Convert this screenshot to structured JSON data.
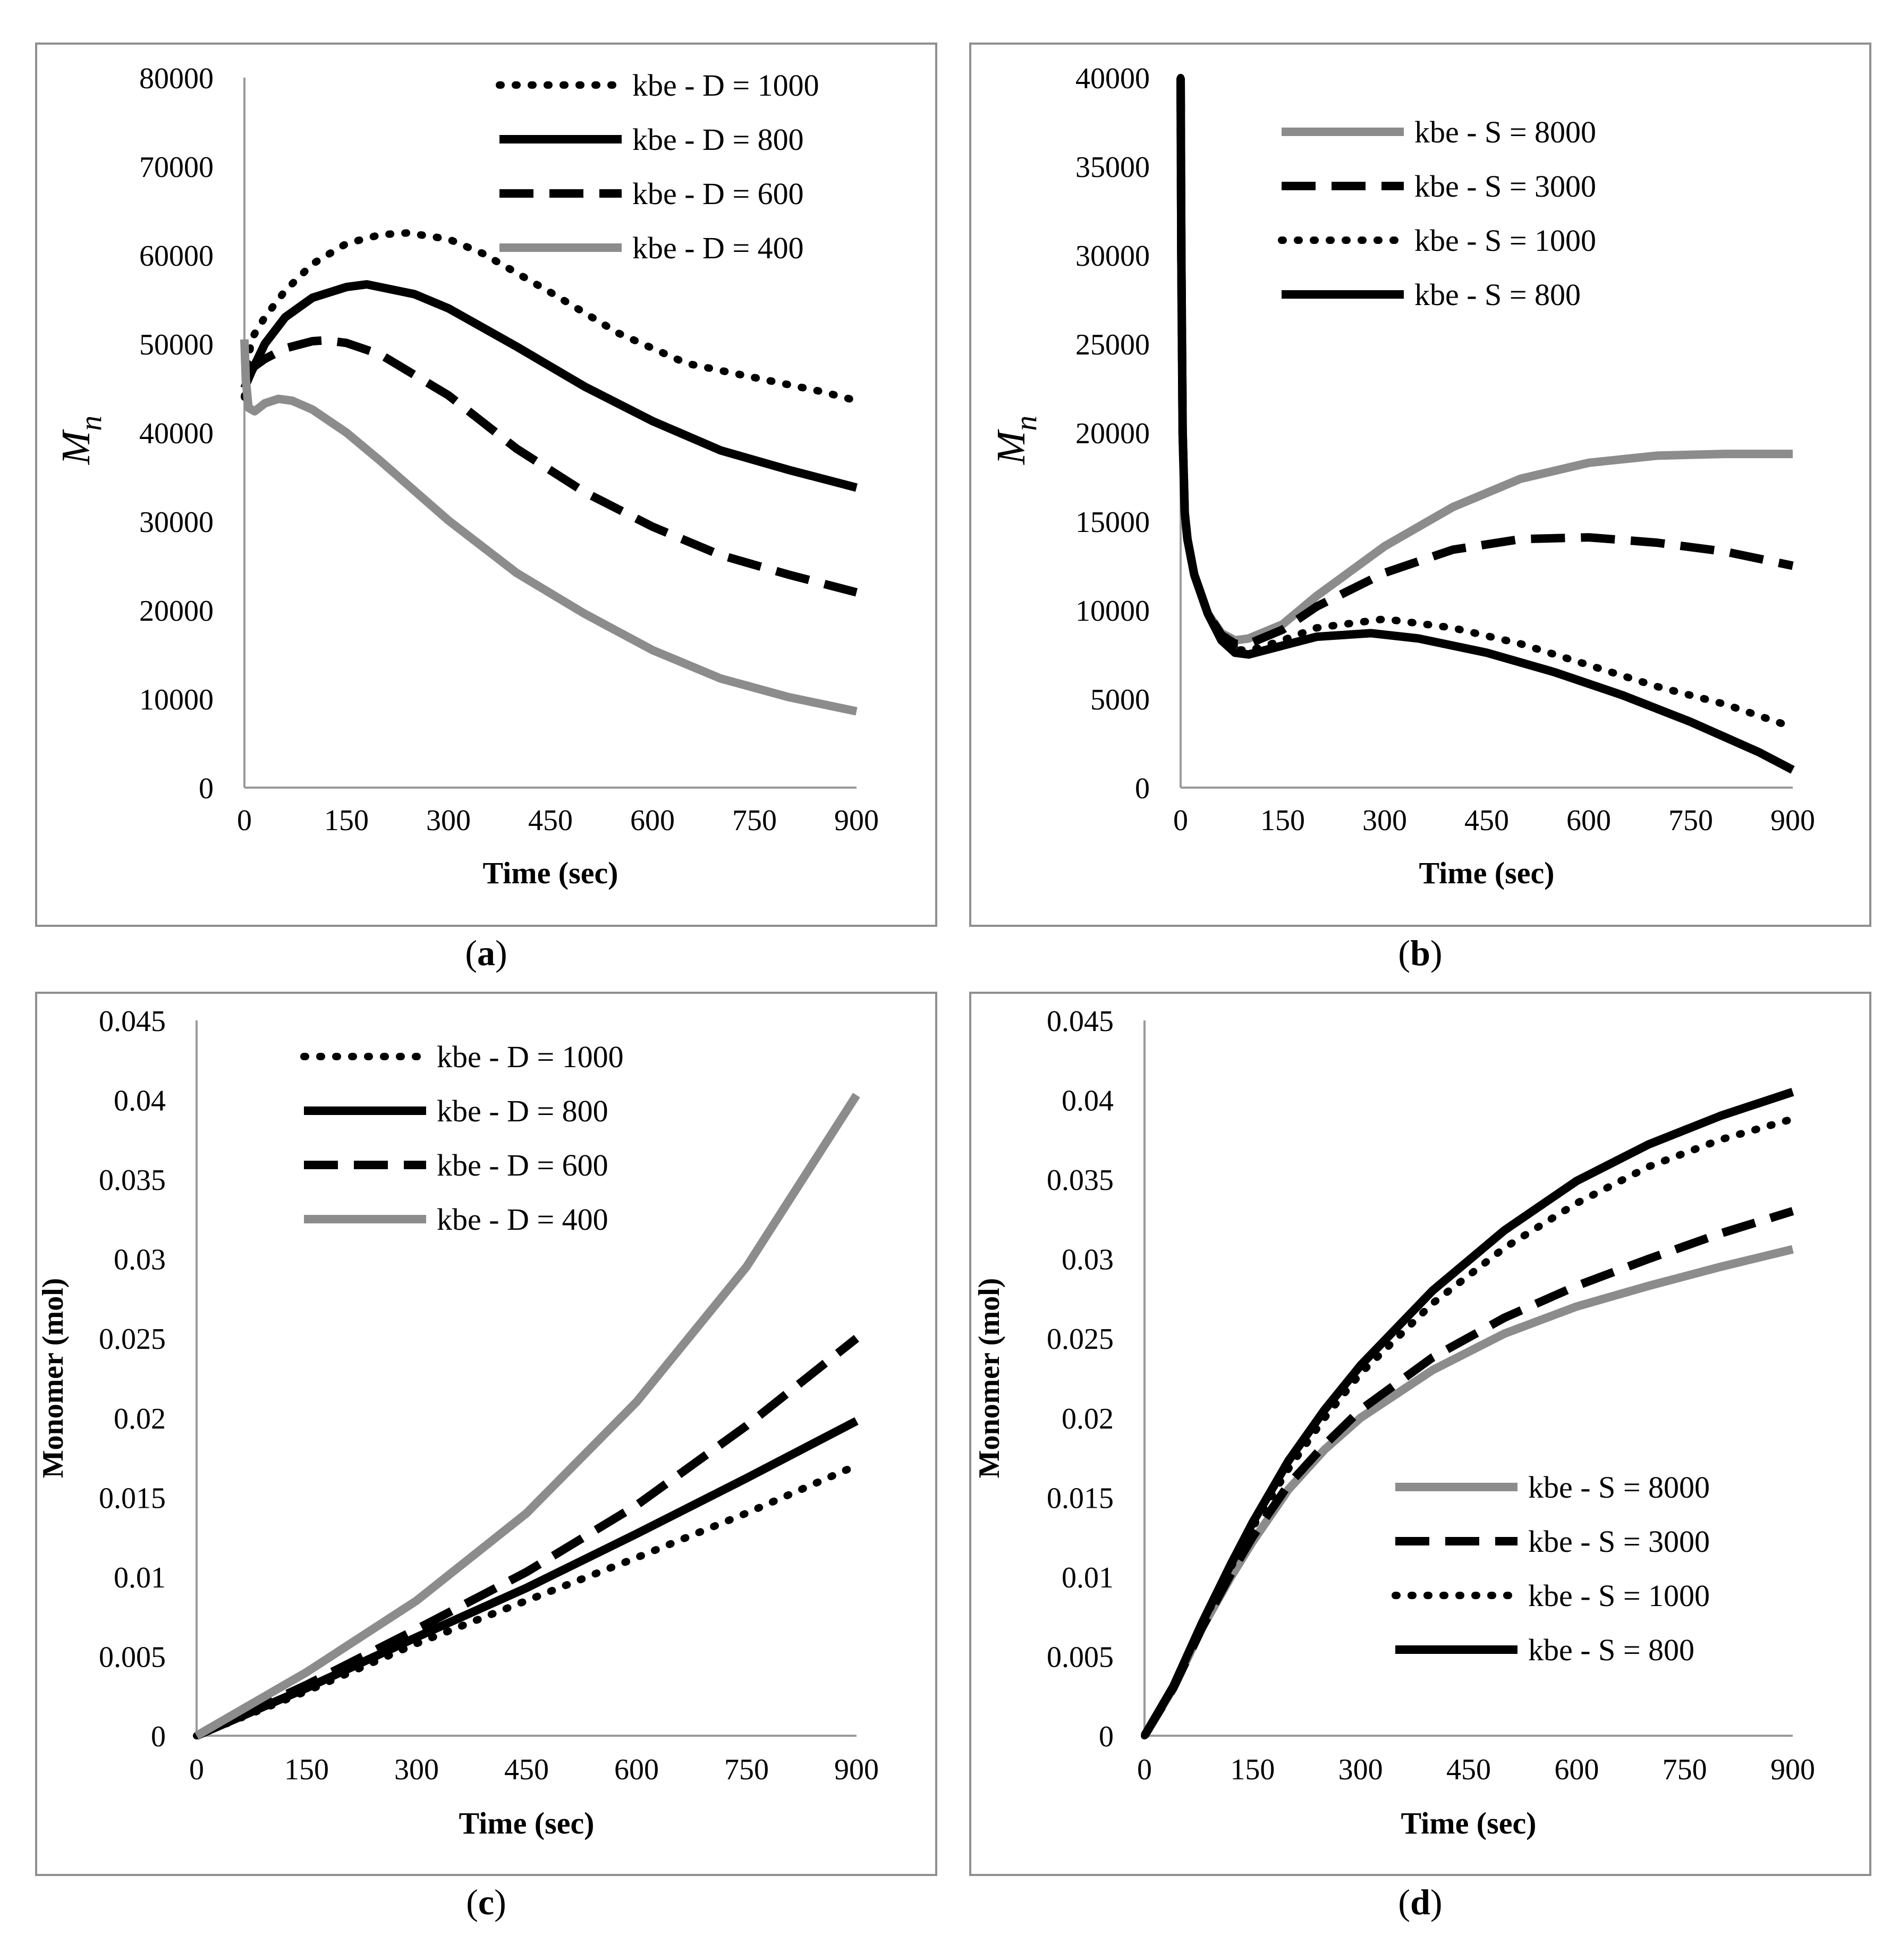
{
  "chart_data": [
    {
      "panel_label": "(a)",
      "type": "line",
      "xlabel": "Time (sec)",
      "ylabel": "M",
      "ylabel_sub": "n",
      "ylabel_style": "math",
      "xlim": [
        0,
        900
      ],
      "ylim": [
        0,
        80000
      ],
      "x_ticks": [
        0,
        150,
        300,
        450,
        600,
        750,
        900
      ],
      "y_ticks": [
        0,
        10000,
        20000,
        30000,
        40000,
        50000,
        60000,
        70000,
        80000
      ],
      "y_tick_labels": [
        "0",
        "10000",
        "20000",
        "30000",
        "40000",
        "50000",
        "60000",
        "70000",
        "80000"
      ],
      "grid": false,
      "legend_position": "top-right",
      "series": [
        {
          "name": "kbe - D = 1000",
          "style": "dotted",
          "color": "#000000",
          "x": [
            0,
            10,
            30,
            60,
            100,
            150,
            200,
            240,
            300,
            350,
            450,
            550,
            650,
            750,
            850,
            900
          ],
          "y": [
            44000,
            50500,
            53000,
            56000,
            59000,
            61300,
            62300,
            62500,
            61800,
            60200,
            55800,
            51200,
            47800,
            46200,
            44600,
            43600
          ]
        },
        {
          "name": "kbe - D = 800",
          "style": "solid",
          "color": "#000000",
          "x": [
            0,
            10,
            30,
            60,
            100,
            150,
            180,
            250,
            300,
            400,
            500,
            600,
            700,
            800,
            900
          ],
          "y": [
            45000,
            46800,
            50000,
            53000,
            55200,
            56400,
            56700,
            55600,
            54000,
            49700,
            45200,
            41300,
            38000,
            35800,
            33800
          ]
        },
        {
          "name": "kbe - D = 600",
          "style": "dashed",
          "color": "#000000",
          "x": [
            0,
            10,
            30,
            60,
            100,
            120,
            150,
            200,
            300,
            400,
            500,
            600,
            700,
            800,
            900
          ],
          "y": [
            47000,
            47200,
            48300,
            49500,
            50300,
            50400,
            50100,
            48800,
            44200,
            38200,
            33300,
            29400,
            26200,
            24000,
            22000
          ]
        },
        {
          "name": "kbe - D = 400",
          "style": "solid",
          "color": "#8c8c8c",
          "x": [
            0,
            2,
            6,
            15,
            30,
            50,
            70,
            100,
            150,
            200,
            300,
            400,
            500,
            600,
            700,
            800,
            900
          ],
          "y": [
            50500,
            46000,
            42800,
            42400,
            43300,
            43800,
            43600,
            42600,
            40000,
            36800,
            30100,
            24200,
            19600,
            15500,
            12300,
            10200,
            8600
          ]
        }
      ]
    },
    {
      "panel_label": "(b)",
      "type": "line",
      "xlabel": "Time (sec)",
      "ylabel": "M",
      "ylabel_sub": "n",
      "ylabel_style": "math",
      "xlim": [
        0,
        900
      ],
      "ylim": [
        0,
        40000
      ],
      "x_ticks": [
        0,
        150,
        300,
        450,
        600,
        750,
        900
      ],
      "y_ticks": [
        0,
        5000,
        10000,
        15000,
        20000,
        25000,
        30000,
        35000,
        40000
      ],
      "y_tick_labels": [
        "0",
        "5000",
        "10000",
        "15000",
        "20000",
        "25000",
        "30000",
        "35000",
        "40000"
      ],
      "grid": false,
      "legend_position": "top-left",
      "series": [
        {
          "name": "kbe - S = 8000",
          "style": "solid",
          "color": "#8c8c8c",
          "x": [
            0,
            1,
            3,
            6,
            10,
            20,
            40,
            60,
            80,
            100,
            150,
            200,
            300,
            400,
            500,
            600,
            700,
            800,
            900
          ],
          "y": [
            40000,
            30000,
            20000,
            15500,
            14000,
            12000,
            9800,
            8700,
            8300,
            8400,
            9200,
            10800,
            13600,
            15800,
            17400,
            18300,
            18700,
            18800,
            18800
          ]
        },
        {
          "name": "kbe - S = 3000",
          "style": "dashed",
          "color": "#000000",
          "x": [
            0,
            1,
            3,
            6,
            10,
            20,
            40,
            60,
            80,
            100,
            150,
            200,
            300,
            400,
            500,
            600,
            700,
            800,
            900
          ],
          "y": [
            40000,
            30000,
            20000,
            15500,
            14000,
            12000,
            9800,
            8600,
            8100,
            8100,
            8900,
            10200,
            12100,
            13400,
            14000,
            14100,
            13800,
            13300,
            12500
          ]
        },
        {
          "name": "kbe - S = 1000",
          "style": "dotted",
          "color": "#000000",
          "x": [
            0,
            1,
            3,
            6,
            10,
            20,
            40,
            60,
            80,
            100,
            150,
            200,
            300,
            400,
            500,
            600,
            700,
            800,
            900
          ],
          "y": [
            40000,
            30000,
            20000,
            15500,
            14000,
            12000,
            9800,
            8500,
            7800,
            7700,
            8300,
            9000,
            9500,
            9000,
            8100,
            6900,
            5700,
            4700,
            3400
          ]
        },
        {
          "name": "kbe - S = 800",
          "style": "solid",
          "color": "#000000",
          "x": [
            0,
            1,
            3,
            6,
            10,
            20,
            40,
            60,
            80,
            100,
            150,
            200,
            280,
            350,
            450,
            550,
            650,
            750,
            850,
            900
          ],
          "y": [
            40000,
            30000,
            20000,
            15500,
            14000,
            12000,
            9800,
            8300,
            7600,
            7500,
            8000,
            8500,
            8700,
            8400,
            7600,
            6500,
            5200,
            3700,
            2000,
            1000
          ]
        }
      ]
    },
    {
      "panel_label": "(c)",
      "type": "line",
      "xlabel": "Time (sec)",
      "ylabel": "Monomer (mol)",
      "ylabel_style": "bold",
      "xlim": [
        0,
        900
      ],
      "ylim": [
        0,
        0.045
      ],
      "x_ticks": [
        0,
        150,
        300,
        450,
        600,
        750,
        900
      ],
      "y_ticks": [
        0,
        0.005,
        0.01,
        0.015,
        0.02,
        0.025,
        0.03,
        0.035,
        0.04,
        0.045
      ],
      "y_tick_labels": [
        "0",
        "0.005",
        "0.01",
        "0.015",
        "0.02",
        "0.025",
        "0.03",
        "0.035",
        "0.04",
        "0.045"
      ],
      "grid": false,
      "legend_position": "top-left",
      "series": [
        {
          "name": "kbe - D = 1000",
          "style": "dotted",
          "color": "#000000",
          "x": [
            0,
            150,
            300,
            450,
            600,
            750,
            900
          ],
          "y": [
            0,
            0.0028,
            0.0058,
            0.0085,
            0.0112,
            0.014,
            0.017
          ]
        },
        {
          "name": "kbe - D = 800",
          "style": "solid",
          "color": "#000000",
          "x": [
            0,
            150,
            300,
            450,
            600,
            750,
            900
          ],
          "y": [
            0,
            0.003,
            0.0062,
            0.0093,
            0.0127,
            0.0162,
            0.0198
          ]
        },
        {
          "name": "kbe - D = 600",
          "style": "dashed",
          "color": "#000000",
          "x": [
            0,
            150,
            300,
            450,
            600,
            750,
            900
          ],
          "y": [
            0,
            0.0032,
            0.0067,
            0.0103,
            0.0145,
            0.0195,
            0.025
          ]
        },
        {
          "name": "kbe - D = 400",
          "style": "solid",
          "color": "#8c8c8c",
          "x": [
            0,
            150,
            300,
            450,
            600,
            750,
            900
          ],
          "y": [
            0,
            0.004,
            0.0085,
            0.014,
            0.021,
            0.0295,
            0.0403
          ]
        }
      ]
    },
    {
      "panel_label": "(d)",
      "type": "line",
      "xlabel": "Time (sec)",
      "ylabel": "Monomer (mol)",
      "ylabel_style": "bold",
      "xlim": [
        0,
        900
      ],
      "ylim": [
        0,
        0.045
      ],
      "x_ticks": [
        0,
        150,
        300,
        450,
        600,
        750,
        900
      ],
      "y_ticks": [
        0,
        0.005,
        0.01,
        0.015,
        0.02,
        0.025,
        0.03,
        0.035,
        0.04,
        0.045
      ],
      "y_tick_labels": [
        "0",
        "0.005",
        "0.01",
        "0.015",
        "0.02",
        "0.025",
        "0.03",
        "0.035",
        "0.04",
        "0.045"
      ],
      "grid": false,
      "legend_position": "bottom-right",
      "series": [
        {
          "name": "kbe - S = 8000",
          "style": "solid",
          "color": "#8c8c8c",
          "x": [
            0,
            40,
            80,
            120,
            150,
            200,
            250,
            300,
            400,
            500,
            600,
            700,
            800,
            900
          ],
          "y": [
            0,
            0.003,
            0.0068,
            0.01,
            0.0122,
            0.0155,
            0.018,
            0.02,
            0.023,
            0.0253,
            0.027,
            0.0283,
            0.0295,
            0.0306
          ]
        },
        {
          "name": "kbe - S = 3000",
          "style": "dashed",
          "color": "#000000",
          "x": [
            0,
            40,
            80,
            120,
            150,
            200,
            250,
            300,
            400,
            500,
            600,
            700,
            800,
            900
          ],
          "y": [
            0,
            0.003,
            0.0068,
            0.0102,
            0.0125,
            0.0158,
            0.0183,
            0.0205,
            0.0238,
            0.0263,
            0.0283,
            0.03,
            0.0316,
            0.033
          ]
        },
        {
          "name": "kbe - S = 1000",
          "style": "dotted",
          "color": "#000000",
          "x": [
            0,
            40,
            80,
            120,
            150,
            200,
            250,
            300,
            400,
            500,
            600,
            700,
            800,
            900
          ],
          "y": [
            0,
            0.0031,
            0.007,
            0.0106,
            0.0131,
            0.0168,
            0.02,
            0.0228,
            0.0272,
            0.0307,
            0.0335,
            0.0358,
            0.0375,
            0.0388
          ]
        },
        {
          "name": "kbe - S = 800",
          "style": "solid",
          "color": "#000000",
          "x": [
            0,
            40,
            80,
            120,
            150,
            200,
            250,
            300,
            400,
            500,
            600,
            700,
            800,
            900
          ],
          "y": [
            0,
            0.0031,
            0.0071,
            0.0108,
            0.0134,
            0.0173,
            0.0205,
            0.0233,
            0.028,
            0.0318,
            0.0349,
            0.0372,
            0.039,
            0.0405
          ]
        }
      ]
    }
  ]
}
